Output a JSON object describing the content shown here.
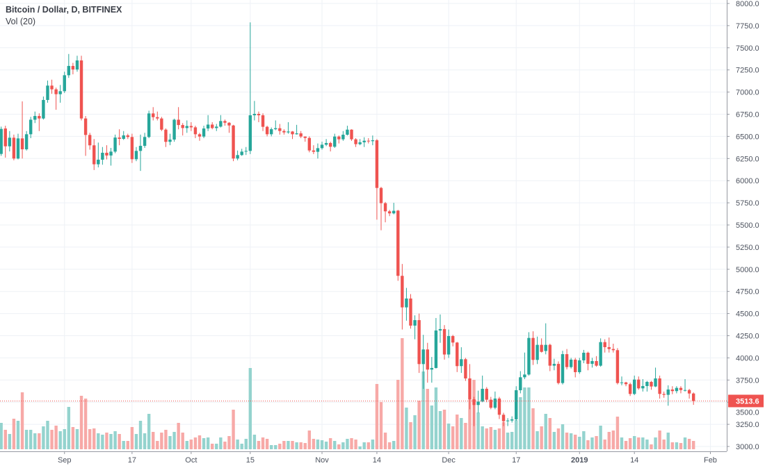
{
  "header": {
    "title": "Bitcoin / Dollar, D, BITFINEX",
    "indicator": "Vol (20)"
  },
  "colors": {
    "up": "#26a69a",
    "down": "#ef5350",
    "up_volume": "#94d3ce",
    "down_volume": "#f7a9a7",
    "grid": "#eef1f6",
    "axis_text": "#4c525e",
    "last_price": "#ef5350"
  },
  "chart_data": {
    "type": "candlestick",
    "title": "Bitcoin / Dollar, D, BITFINEX",
    "indicator": "Vol (20)",
    "ylim": [
      3000,
      8000
    ],
    "grid": true,
    "price_axis_position": "right",
    "last_price": "3513.6",
    "y_ticks": [
      "3000.0",
      "3250.0",
      "3500.0",
      "3750.0",
      "4000.0",
      "4250.0",
      "4500.0",
      "4750.0",
      "5000.0",
      "5250.0",
      "5500.0",
      "5750.0",
      "6000.0",
      "6250.0",
      "6500.0",
      "6750.0",
      "7000.0",
      "7250.0",
      "7500.0",
      "7750.0",
      "8000.0"
    ],
    "x_ticks": [
      {
        "date": "2018-09-01",
        "label": "Sep",
        "bold": false
      },
      {
        "date": "2018-09-17",
        "label": "17",
        "bold": false
      },
      {
        "date": "2018-10-01",
        "label": "Oct",
        "bold": false
      },
      {
        "date": "2018-10-15",
        "label": "15",
        "bold": false
      },
      {
        "date": "2018-11-01",
        "label": "Nov",
        "bold": false
      },
      {
        "date": "2018-11-14",
        "label": "14",
        "bold": false
      },
      {
        "date": "2018-12-01",
        "label": "Dec",
        "bold": false
      },
      {
        "date": "2018-12-17",
        "label": "17",
        "bold": false
      },
      {
        "date": "2019-01-01",
        "label": "2019",
        "bold": true
      },
      {
        "date": "2019-01-14",
        "label": "14",
        "bold": false
      },
      {
        "date": "2019-02-01",
        "label": "Feb",
        "bold": false
      }
    ],
    "columns": [
      "date",
      "open",
      "high",
      "low",
      "close",
      "volume_relative"
    ],
    "candles": [
      [
        "2018-08-17",
        6302,
        6610,
        6280,
        6584,
        38
      ],
      [
        "2018-08-18",
        6589,
        6620,
        6260,
        6388,
        28
      ],
      [
        "2018-08-19",
        6388,
        6560,
        6330,
        6485,
        22
      ],
      [
        "2018-08-20",
        6485,
        6520,
        6230,
        6250,
        44
      ],
      [
        "2018-08-21",
        6250,
        6530,
        6240,
        6477,
        41
      ],
      [
        "2018-08-22",
        6477,
        6895,
        6250,
        6354,
        82
      ],
      [
        "2018-08-23",
        6354,
        6560,
        6340,
        6524,
        28
      ],
      [
        "2018-08-24",
        6524,
        6720,
        6480,
        6688,
        28
      ],
      [
        "2018-08-25",
        6688,
        6780,
        6650,
        6730,
        23
      ],
      [
        "2018-08-26",
        6730,
        6760,
        6560,
        6702,
        23
      ],
      [
        "2018-08-27",
        6702,
        6950,
        6690,
        6911,
        33
      ],
      [
        "2018-08-28",
        6911,
        7130,
        6880,
        7073,
        41
      ],
      [
        "2018-08-29",
        7073,
        7140,
        6980,
        7031,
        28
      ],
      [
        "2018-08-30",
        7031,
        7050,
        6800,
        6976,
        34
      ],
      [
        "2018-08-31",
        6976,
        7080,
        6880,
        7010,
        26
      ],
      [
        "2018-09-01",
        7010,
        7230,
        6990,
        7190,
        29
      ],
      [
        "2018-09-02",
        7190,
        7430,
        7160,
        7295,
        61
      ],
      [
        "2018-09-03",
        7295,
        7330,
        7200,
        7255,
        32
      ],
      [
        "2018-09-04",
        7255,
        7410,
        7230,
        7357,
        29
      ],
      [
        "2018-09-05",
        7357,
        7410,
        6680,
        6702,
        77
      ],
      [
        "2018-09-06",
        6702,
        6730,
        6280,
        6516,
        73
      ],
      [
        "2018-09-07",
        6516,
        6540,
        6350,
        6399,
        29
      ],
      [
        "2018-09-08",
        6399,
        6470,
        6120,
        6185,
        30
      ],
      [
        "2018-09-09",
        6185,
        6430,
        6150,
        6237,
        23
      ],
      [
        "2018-09-10",
        6237,
        6380,
        6180,
        6315,
        21
      ],
      [
        "2018-09-11",
        6315,
        6400,
        6240,
        6284,
        24
      ],
      [
        "2018-09-12",
        6284,
        6370,
        6170,
        6328,
        22
      ],
      [
        "2018-09-13",
        6328,
        6520,
        6310,
        6487,
        26
      ],
      [
        "2018-09-14",
        6487,
        6580,
        6400,
        6472,
        22
      ],
      [
        "2018-09-15",
        6472,
        6560,
        6460,
        6511,
        12
      ],
      [
        "2018-09-16",
        6511,
        6530,
        6470,
        6493,
        12
      ],
      [
        "2018-09-17",
        6493,
        6530,
        6200,
        6242,
        32
      ],
      [
        "2018-09-18",
        6242,
        6380,
        6220,
        6336,
        22
      ],
      [
        "2018-09-19",
        6336,
        6520,
        6110,
        6393,
        41
      ],
      [
        "2018-09-20",
        6393,
        6540,
        6370,
        6493,
        23
      ],
      [
        "2018-09-21",
        6493,
        6790,
        6480,
        6759,
        51
      ],
      [
        "2018-09-22",
        6759,
        6830,
        6680,
        6717,
        25
      ],
      [
        "2018-09-23",
        6717,
        6780,
        6680,
        6702,
        12
      ],
      [
        "2018-09-24",
        6702,
        6720,
        6560,
        6576,
        24
      ],
      [
        "2018-09-25",
        6576,
        6590,
        6380,
        6438,
        28
      ],
      [
        "2018-09-26",
        6438,
        6530,
        6400,
        6464,
        19
      ],
      [
        "2018-09-27",
        6464,
        6700,
        6440,
        6688,
        25
      ],
      [
        "2018-09-28",
        6688,
        6830,
        6580,
        6628,
        38
      ],
      [
        "2018-09-29",
        6628,
        6650,
        6510,
        6594,
        24
      ],
      [
        "2018-09-30",
        6594,
        6680,
        6540,
        6617,
        12
      ],
      [
        "2018-10-01",
        6617,
        6660,
        6560,
        6602,
        14
      ],
      [
        "2018-10-02",
        6602,
        6620,
        6480,
        6524,
        17
      ],
      [
        "2018-10-03",
        6524,
        6540,
        6450,
        6498,
        20
      ],
      [
        "2018-10-04",
        6498,
        6620,
        6480,
        6589,
        16
      ],
      [
        "2018-10-05",
        6589,
        6740,
        6560,
        6633,
        17
      ],
      [
        "2018-10-06",
        6633,
        6660,
        6580,
        6594,
        8
      ],
      [
        "2018-10-07",
        6594,
        6640,
        6560,
        6610,
        8
      ],
      [
        "2018-10-08",
        6610,
        6740,
        6600,
        6673,
        17
      ],
      [
        "2018-10-09",
        6673,
        6690,
        6620,
        6654,
        11
      ],
      [
        "2018-10-10",
        6654,
        6660,
        6540,
        6623,
        19
      ],
      [
        "2018-10-11",
        6623,
        6630,
        6220,
        6250,
        57
      ],
      [
        "2018-10-12",
        6250,
        6340,
        6230,
        6289,
        14
      ],
      [
        "2018-10-13",
        6289,
        6360,
        6280,
        6328,
        8
      ],
      [
        "2018-10-14",
        6328,
        6380,
        6290,
        6336,
        15
      ],
      [
        "2018-10-15",
        6336,
        7786,
        6300,
        6738,
        117
      ],
      [
        "2018-10-16",
        6738,
        6900,
        6680,
        6754,
        21
      ],
      [
        "2018-10-17",
        6754,
        6780,
        6660,
        6738,
        12
      ],
      [
        "2018-10-18",
        6738,
        6760,
        6560,
        6608,
        17
      ],
      [
        "2018-10-19",
        6608,
        6620,
        6500,
        6524,
        15
      ],
      [
        "2018-10-20",
        6524,
        6600,
        6500,
        6581,
        6
      ],
      [
        "2018-10-21",
        6581,
        6680,
        6570,
        6592,
        6
      ],
      [
        "2018-10-22",
        6592,
        6640,
        6520,
        6561,
        8
      ],
      [
        "2018-10-23",
        6561,
        6580,
        6520,
        6545,
        12
      ],
      [
        "2018-10-24",
        6545,
        6660,
        6530,
        6555,
        12
      ],
      [
        "2018-10-25",
        6555,
        6560,
        6470,
        6524,
        12
      ],
      [
        "2018-10-26",
        6524,
        6630,
        6520,
        6534,
        10
      ],
      [
        "2018-10-27",
        6534,
        6560,
        6480,
        6498,
        10
      ],
      [
        "2018-10-28",
        6498,
        6500,
        6440,
        6482,
        9
      ],
      [
        "2018-10-29",
        6482,
        6500,
        6320,
        6341,
        27
      ],
      [
        "2018-10-30",
        6341,
        6400,
        6300,
        6326,
        15
      ],
      [
        "2018-10-31",
        6326,
        6420,
        6250,
        6367,
        14
      ],
      [
        "2018-11-01",
        6367,
        6440,
        6350,
        6406,
        13
      ],
      [
        "2018-11-02",
        6406,
        6470,
        6390,
        6425,
        11
      ],
      [
        "2018-11-03",
        6425,
        6440,
        6330,
        6383,
        16
      ],
      [
        "2018-11-04",
        6383,
        6530,
        6370,
        6498,
        12
      ],
      [
        "2018-11-05",
        6498,
        6510,
        6420,
        6467,
        7
      ],
      [
        "2018-11-06",
        6467,
        6560,
        6450,
        6519,
        10
      ],
      [
        "2018-11-07",
        6519,
        6620,
        6510,
        6576,
        15
      ],
      [
        "2018-11-08",
        6576,
        6580,
        6450,
        6467,
        16
      ],
      [
        "2018-11-09",
        6467,
        6480,
        6380,
        6412,
        14
      ],
      [
        "2018-11-10",
        6412,
        6470,
        6400,
        6433,
        4
      ],
      [
        "2018-11-11",
        6433,
        6490,
        6380,
        6451,
        10
      ],
      [
        "2018-11-12",
        6451,
        6480,
        6420,
        6446,
        10
      ],
      [
        "2018-11-13",
        6446,
        6510,
        6400,
        6456,
        14
      ],
      [
        "2018-11-14",
        6456,
        6470,
        5560,
        5918,
        94
      ],
      [
        "2018-11-15",
        5918,
        5930,
        5440,
        5746,
        68
      ],
      [
        "2018-11-16",
        5746,
        5760,
        5530,
        5654,
        24
      ],
      [
        "2018-11-17",
        5654,
        5670,
        5600,
        5631,
        10
      ],
      [
        "2018-11-18",
        5631,
        5750,
        5620,
        5660,
        12
      ],
      [
        "2018-11-19",
        5662,
        5670,
        4870,
        4926,
        100
      ],
      [
        "2018-11-20",
        4926,
        5060,
        4320,
        4570,
        160
      ],
      [
        "2018-11-21",
        4570,
        4790,
        4420,
        4670,
        60
      ],
      [
        "2018-11-22",
        4670,
        4720,
        4330,
        4364,
        39
      ],
      [
        "2018-11-23",
        4364,
        4480,
        4210,
        4426,
        49
      ],
      [
        "2018-11-24",
        4426,
        4500,
        3830,
        3930,
        70
      ],
      [
        "2018-11-25",
        3930,
        4260,
        3650,
        4095,
        112
      ],
      [
        "2018-11-26",
        4095,
        4170,
        3720,
        3868,
        87
      ],
      [
        "2018-11-27",
        3868,
        4010,
        3720,
        3886,
        63
      ],
      [
        "2018-11-28",
        3886,
        4450,
        3880,
        4309,
        89
      ],
      [
        "2018-11-29",
        4309,
        4490,
        4170,
        4325,
        55
      ],
      [
        "2018-11-30",
        4325,
        4370,
        3980,
        4038,
        57
      ],
      [
        "2018-12-01",
        4038,
        4320,
        4000,
        4246,
        37
      ],
      [
        "2018-12-02",
        4246,
        4260,
        4130,
        4173,
        33
      ],
      [
        "2018-12-03",
        4173,
        4180,
        3840,
        3907,
        50
      ],
      [
        "2018-12-04",
        3907,
        4120,
        3830,
        3985,
        45
      ],
      [
        "2018-12-05",
        3985,
        4000,
        3740,
        3768,
        38
      ],
      [
        "2018-12-06",
        3768,
        3930,
        3420,
        3533,
        72
      ],
      [
        "2018-12-07",
        3533,
        3560,
        3230,
        3468,
        100
      ],
      [
        "2018-12-08",
        3468,
        3630,
        3380,
        3507,
        53
      ],
      [
        "2018-12-09",
        3507,
        3800,
        3500,
        3651,
        33
      ],
      [
        "2018-12-10",
        3651,
        3670,
        3500,
        3528,
        30
      ],
      [
        "2018-12-11",
        3528,
        3560,
        3420,
        3437,
        32
      ],
      [
        "2018-12-12",
        3437,
        3620,
        3420,
        3541,
        28
      ],
      [
        "2018-12-13",
        3541,
        3560,
        3310,
        3358,
        30
      ],
      [
        "2018-12-14",
        3358,
        3380,
        3230,
        3285,
        39
      ],
      [
        "2018-12-15",
        3285,
        3320,
        3230,
        3293,
        24
      ],
      [
        "2018-12-16",
        3293,
        3340,
        3270,
        3306,
        25
      ],
      [
        "2018-12-17",
        3306,
        3680,
        3290,
        3635,
        42
      ],
      [
        "2018-12-18",
        3635,
        3850,
        3600,
        3781,
        75
      ],
      [
        "2018-12-19",
        3781,
        4060,
        3760,
        3812,
        89
      ],
      [
        "2018-12-20",
        3812,
        4290,
        3800,
        4225,
        89
      ],
      [
        "2018-12-21",
        4225,
        4300,
        3920,
        3977,
        59
      ],
      [
        "2018-12-22",
        3977,
        4240,
        3930,
        4147,
        26
      ],
      [
        "2018-12-23",
        4147,
        4220,
        4060,
        4068,
        33
      ],
      [
        "2018-12-24",
        4078,
        4390,
        4040,
        4147,
        51
      ],
      [
        "2018-12-25",
        4147,
        4160,
        3850,
        3912,
        45
      ],
      [
        "2018-12-26",
        3912,
        3990,
        3860,
        3932,
        25
      ],
      [
        "2018-12-27",
        3932,
        3960,
        3700,
        3716,
        30
      ],
      [
        "2018-12-28",
        3716,
        4080,
        3700,
        4042,
        36
      ],
      [
        "2018-12-29",
        4042,
        4100,
        3870,
        3896,
        24
      ],
      [
        "2018-12-30",
        3896,
        4000,
        3880,
        3980,
        23
      ],
      [
        "2018-12-31",
        3980,
        4000,
        3780,
        3839,
        21
      ],
      [
        "2019-01-01",
        3839,
        4000,
        3820,
        3972,
        18
      ],
      [
        "2019-01-02",
        3972,
        4090,
        3940,
        4058,
        26
      ],
      [
        "2019-01-03",
        4058,
        4070,
        3860,
        3933,
        13
      ],
      [
        "2019-01-04",
        3933,
        4000,
        3890,
        3964,
        17
      ],
      [
        "2019-01-05",
        3964,
        4020,
        3900,
        3912,
        19
      ],
      [
        "2019-01-06",
        3912,
        4220,
        3900,
        4178,
        34
      ],
      [
        "2019-01-07",
        4178,
        4210,
        4060,
        4121,
        14
      ],
      [
        "2019-01-08",
        4121,
        4230,
        4060,
        4100,
        25
      ],
      [
        "2019-01-09",
        4100,
        4160,
        4060,
        4087,
        27
      ],
      [
        "2019-01-10",
        4087,
        4110,
        3700,
        3716,
        47
      ],
      [
        "2019-01-11",
        3716,
        3790,
        3690,
        3723,
        17
      ],
      [
        "2019-01-12",
        3723,
        3730,
        3680,
        3703,
        12
      ],
      [
        "2019-01-13",
        3703,
        3720,
        3570,
        3593,
        16
      ],
      [
        "2019-01-14",
        3593,
        3800,
        3580,
        3755,
        19
      ],
      [
        "2019-01-15",
        3755,
        3790,
        3640,
        3656,
        17
      ],
      [
        "2019-01-16",
        3656,
        3760,
        3620,
        3682,
        17
      ],
      [
        "2019-01-17",
        3682,
        3740,
        3620,
        3729,
        14
      ],
      [
        "2019-01-18",
        3729,
        3740,
        3640,
        3677,
        7
      ],
      [
        "2019-01-19",
        3677,
        3890,
        3670,
        3768,
        17
      ],
      [
        "2019-01-20",
        3768,
        3800,
        3540,
        3593,
        27
      ],
      [
        "2019-01-21",
        3593,
        3620,
        3550,
        3583,
        14
      ],
      [
        "2019-01-22",
        3583,
        3690,
        3460,
        3643,
        24
      ],
      [
        "2019-01-23",
        3643,
        3680,
        3590,
        3625,
        10
      ],
      [
        "2019-01-24",
        3625,
        3680,
        3600,
        3661,
        10
      ],
      [
        "2019-01-25",
        3661,
        3680,
        3600,
        3637,
        9
      ],
      [
        "2019-01-26",
        3632,
        3760,
        3620,
        3637,
        17
      ],
      [
        "2019-01-27",
        3637,
        3650,
        3540,
        3598,
        15
      ],
      [
        "2019-01-28",
        3598,
        3610,
        3470,
        3513.6,
        12
      ]
    ]
  }
}
